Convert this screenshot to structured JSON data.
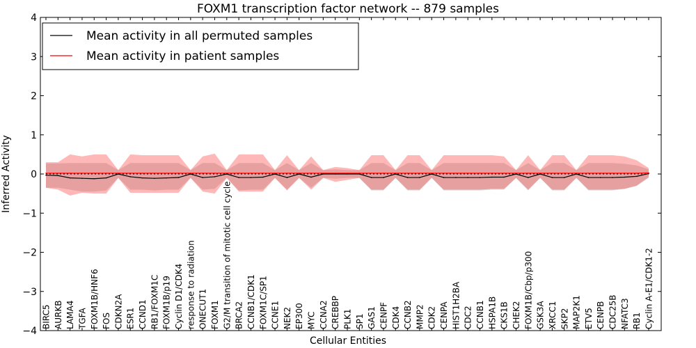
{
  "colors": {
    "permuted_line": "#000000",
    "patient_line": "#ff0000",
    "patient_band": "#ff3333",
    "permuted_band": "#999999",
    "axis": "#000000"
  },
  "chart_data": {
    "type": "line",
    "title": "FOXM1 transcription factor network -- 879 samples",
    "xlabel": "Cellular Entities",
    "ylabel": "Inferred Activity",
    "ylim": [
      -4,
      4
    ],
    "yticks": [
      4,
      3,
      2,
      1,
      0,
      -1,
      -2,
      -3,
      -4
    ],
    "ytick_labels": [
      "4",
      "3",
      "2",
      "1",
      "0",
      "−1",
      "−2",
      "−3",
      "−4"
    ],
    "grid": false,
    "legend_position": "top-left",
    "legend": [
      {
        "label": "Mean activity in all permuted samples",
        "color": "#000000"
      },
      {
        "label": "Mean activity in patient samples",
        "color": "#ff0000"
      }
    ],
    "categories": [
      "BIRC5",
      "AURKB",
      "LAMA4",
      "TGFA",
      "FOXM1B/HNF6",
      "FOS",
      "CDKN2A",
      "ESR1",
      "CCND1",
      "RB1/FOXM1C",
      "FOXM1B/p19",
      "Cyclin D1/CDK4",
      "response to radiation",
      "ONECUT1",
      "FOXM1",
      "G2/M transition of mitotic cell cycle",
      "BRCA2",
      "CCNB1/CDK1",
      "FOXM1C/SP1",
      "CCNE1",
      "NEK2",
      "EP300",
      "MYC",
      "CCNA2",
      "CREBBP",
      "PLK1",
      "SP1",
      "GAS1",
      "CENPF",
      "CDK4",
      "CCNB2",
      "MMP2",
      "CDK2",
      "CENPA",
      "HIST1H2BA",
      "CDC2",
      "CCNB1",
      "HSPA1B",
      "CKS1B",
      "CHEK2",
      "FOXM1B/Cbp/p300",
      "GSK3A",
      "XRCC1",
      "SKP2",
      "MAP2K1",
      "ETV5",
      "CENPB",
      "CDC25B",
      "NFATC3",
      "RB1",
      "Cyclin A-E1/CDK1-2"
    ],
    "series": [
      {
        "name": "Mean activity in all permuted samples",
        "values": [
          -0.03,
          -0.04,
          -0.1,
          -0.11,
          -0.12,
          -0.1,
          0.0,
          -0.07,
          -0.1,
          -0.11,
          -0.1,
          -0.09,
          0.0,
          -0.09,
          -0.07,
          0.0,
          -0.09,
          -0.09,
          -0.08,
          0.0,
          -0.09,
          0.0,
          -0.08,
          0.0,
          0.0,
          0.0,
          0.0,
          -0.09,
          -0.09,
          0.0,
          -0.09,
          -0.09,
          0.0,
          -0.09,
          -0.09,
          -0.09,
          -0.09,
          -0.08,
          -0.08,
          0.0,
          -0.09,
          0.0,
          -0.09,
          -0.09,
          0.0,
          -0.09,
          -0.09,
          -0.09,
          -0.08,
          -0.06,
          0.01
        ],
        "band_low": [
          -0.35,
          -0.35,
          -0.4,
          -0.45,
          -0.45,
          -0.42,
          -0.1,
          -0.4,
          -0.4,
          -0.42,
          -0.4,
          -0.4,
          -0.1,
          -0.4,
          -0.38,
          -0.1,
          -0.42,
          -0.4,
          -0.4,
          -0.1,
          -0.4,
          -0.1,
          -0.35,
          -0.1,
          -0.12,
          -0.1,
          -0.1,
          -0.42,
          -0.42,
          -0.1,
          -0.42,
          -0.42,
          -0.1,
          -0.42,
          -0.42,
          -0.42,
          -0.42,
          -0.4,
          -0.4,
          -0.1,
          -0.42,
          -0.1,
          -0.42,
          -0.42,
          -0.1,
          -0.42,
          -0.42,
          -0.42,
          -0.38,
          -0.3,
          -0.1
        ],
        "band_high": [
          0.27,
          0.27,
          0.28,
          0.28,
          0.28,
          0.28,
          0.1,
          0.28,
          0.28,
          0.28,
          0.28,
          0.28,
          0.1,
          0.28,
          0.28,
          0.1,
          0.28,
          0.28,
          0.28,
          0.1,
          0.28,
          0.1,
          0.28,
          0.1,
          0.12,
          0.1,
          0.1,
          0.28,
          0.28,
          0.1,
          0.28,
          0.28,
          0.1,
          0.28,
          0.28,
          0.28,
          0.28,
          0.28,
          0.28,
          0.1,
          0.28,
          0.1,
          0.28,
          0.28,
          0.1,
          0.28,
          0.28,
          0.28,
          0.26,
          0.22,
          0.12
        ]
      },
      {
        "name": "Mean activity in patient samples",
        "values": [
          0.02,
          0.02,
          0.02,
          0.02,
          0.02,
          0.02,
          0.02,
          0.02,
          0.02,
          0.02,
          0.02,
          0.02,
          0.02,
          0.02,
          0.02,
          0.02,
          0.02,
          0.02,
          0.02,
          0.02,
          0.02,
          0.02,
          0.02,
          0.02,
          0.02,
          0.02,
          0.02,
          0.02,
          0.02,
          0.02,
          0.02,
          0.02,
          0.02,
          0.02,
          0.02,
          0.02,
          0.02,
          0.02,
          0.02,
          0.02,
          0.02,
          0.02,
          0.02,
          0.02,
          0.02,
          0.02,
          0.02,
          0.02,
          0.02,
          0.02,
          0.03
        ],
        "band_low": [
          -0.35,
          -0.4,
          -0.55,
          -0.48,
          -0.5,
          -0.5,
          -0.1,
          -0.48,
          -0.48,
          -0.48,
          -0.48,
          -0.48,
          -0.1,
          -0.45,
          -0.5,
          -0.1,
          -0.45,
          -0.45,
          -0.45,
          -0.1,
          -0.42,
          -0.1,
          -0.4,
          -0.1,
          -0.2,
          -0.15,
          -0.1,
          -0.4,
          -0.4,
          -0.1,
          -0.4,
          -0.4,
          -0.1,
          -0.4,
          -0.4,
          -0.4,
          -0.4,
          -0.38,
          -0.38,
          -0.1,
          -0.4,
          -0.1,
          -0.4,
          -0.4,
          -0.1,
          -0.4,
          -0.4,
          -0.4,
          -0.38,
          -0.3,
          -0.08
        ],
        "band_high": [
          0.3,
          0.3,
          0.5,
          0.45,
          0.5,
          0.5,
          0.1,
          0.5,
          0.48,
          0.48,
          0.48,
          0.48,
          0.1,
          0.45,
          0.52,
          0.1,
          0.5,
          0.5,
          0.5,
          0.1,
          0.48,
          0.1,
          0.45,
          0.1,
          0.18,
          0.15,
          0.1,
          0.48,
          0.48,
          0.1,
          0.48,
          0.48,
          0.1,
          0.48,
          0.48,
          0.48,
          0.48,
          0.48,
          0.45,
          0.1,
          0.48,
          0.1,
          0.48,
          0.48,
          0.1,
          0.48,
          0.48,
          0.48,
          0.45,
          0.35,
          0.15
        ]
      }
    ]
  }
}
